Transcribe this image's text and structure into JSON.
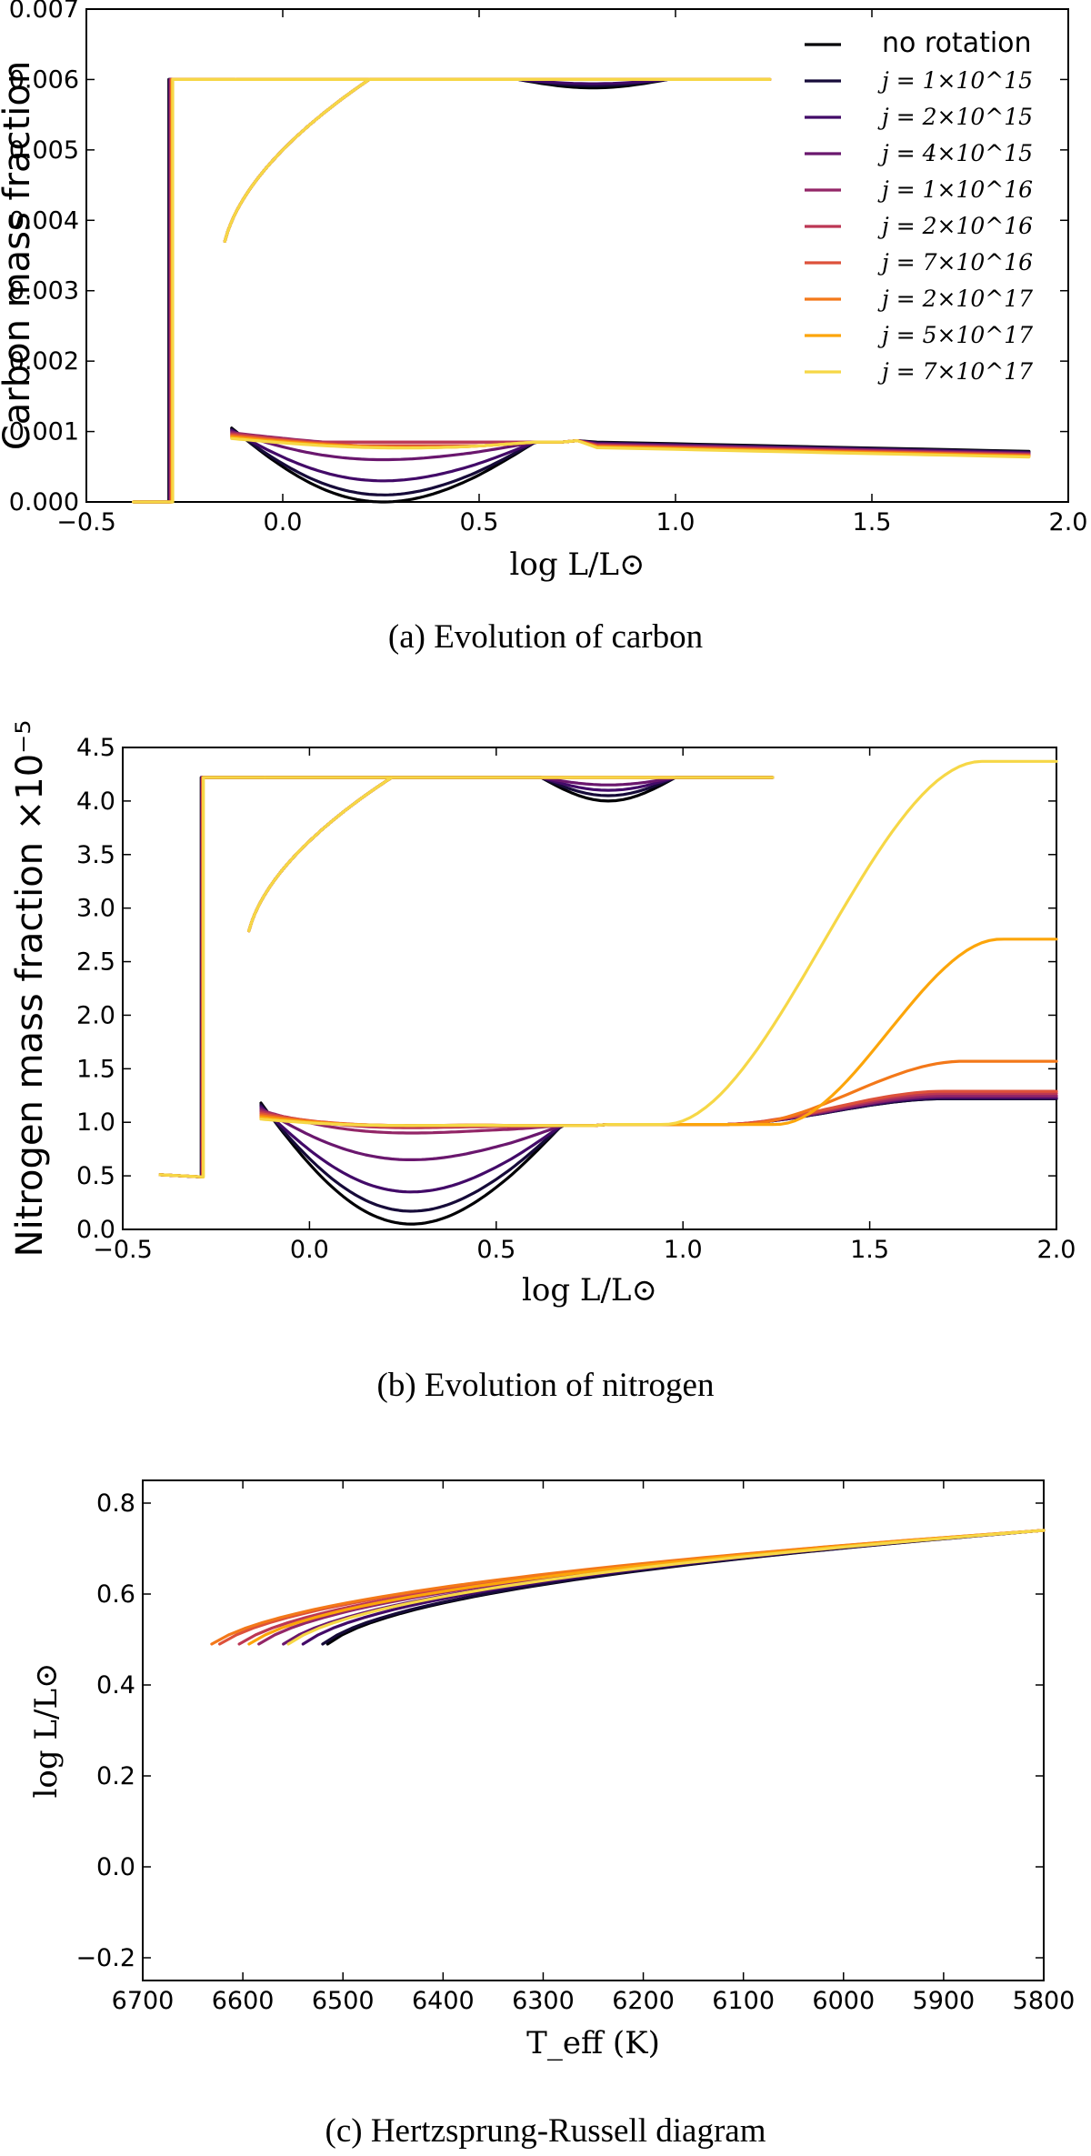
{
  "chart_data": [
    {
      "type": "line",
      "title": "",
      "caption": "(a) Evolution of carbon",
      "xlabel": "log L/L⊙",
      "ylabel": "Carbon mass fraction",
      "xlim": [
        -0.5,
        2.0
      ],
      "ylim": [
        0.0,
        0.007
      ],
      "xticks": [
        "−0.5",
        "0.0",
        "0.5",
        "1.0",
        "1.5",
        "2.0"
      ],
      "yticks": [
        "0.000",
        "0.001",
        "0.002",
        "0.003",
        "0.004",
        "0.005",
        "0.006",
        "0.007"
      ],
      "legend_position": "top-right",
      "series": [
        {
          "name": "no rotation",
          "color": "#000004",
          "min_value": 0.0
        },
        {
          "name": "j = 1×10^15",
          "color": "#160b39",
          "min_value": 0.0001
        },
        {
          "name": "j = 2×10^15",
          "color": "#420a68",
          "min_value": 0.0003
        },
        {
          "name": "j = 4×10^15",
          "color": "#6a176e",
          "min_value": 0.0006
        },
        {
          "name": "j = 1×10^16",
          "color": "#932667",
          "min_value": 0.00085
        },
        {
          "name": "j = 2×10^16",
          "color": "#bc3754",
          "min_value": 0.00085
        },
        {
          "name": "j = 7×10^16",
          "color": "#dd513a",
          "min_value": 0.0008
        },
        {
          "name": "j = 2×10^17",
          "color": "#f37819",
          "min_value": 0.00075
        },
        {
          "name": "j = 5×10^17",
          "color": "#fca50a",
          "min_value": 0.0007
        },
        {
          "name": "j = 7×10^17",
          "color": "#f6d746",
          "min_value": 0.00065
        }
      ]
    },
    {
      "type": "line",
      "title": "",
      "caption": "(b) Evolution of nitrogen",
      "xlabel": "log L/L⊙",
      "ylabel": "Nitrogen mass fraction ×10⁻⁵",
      "xlim": [
        -0.5,
        2.0
      ],
      "ylim": [
        0.0,
        4.5
      ],
      "xticks": [
        "−0.5",
        "0.0",
        "0.5",
        "1.0",
        "1.5",
        "2.0"
      ],
      "yticks": [
        "0.0",
        "0.5",
        "1.0",
        "1.5",
        "2.0",
        "2.5",
        "3.0",
        "3.5",
        "4.0",
        "4.5"
      ],
      "series": [
        {
          "name": "no rotation",
          "color": "#000004",
          "min_value": 0.05,
          "final_value": 1.22
        },
        {
          "name": "j = 1×10^15",
          "color": "#160b39",
          "min_value": 0.17,
          "final_value": 1.22
        },
        {
          "name": "j = 2×10^15",
          "color": "#420a68",
          "min_value": 0.35,
          "final_value": 1.23
        },
        {
          "name": "j = 4×10^15",
          "color": "#6a176e",
          "min_value": 0.65,
          "final_value": 1.24
        },
        {
          "name": "j = 1×10^16",
          "color": "#932667",
          "min_value": 0.9,
          "final_value": 1.25
        },
        {
          "name": "j = 2×10^16",
          "color": "#bc3754",
          "min_value": 0.95,
          "final_value": 1.27
        },
        {
          "name": "j = 7×10^16",
          "color": "#dd513a",
          "min_value": 0.97,
          "final_value": 1.29
        },
        {
          "name": "j = 2×10^17",
          "color": "#f37819",
          "min_value": 0.97,
          "final_value": 1.57
        },
        {
          "name": "j = 5×10^17",
          "color": "#fca50a",
          "min_value": 0.97,
          "final_value": 2.71
        },
        {
          "name": "j = 7×10^17",
          "color": "#f6d746",
          "min_value": 0.97,
          "final_value": 4.37
        }
      ]
    },
    {
      "type": "line",
      "title": "",
      "caption": "(c) Hertzsprung-Russell diagram",
      "xlabel": "T_eff (K)",
      "ylabel": "log L/L⊙",
      "xlim": [
        6700,
        5800
      ],
      "ylim": [
        -0.25,
        0.85
      ],
      "xticks": [
        "6700",
        "6600",
        "6500",
        "6400",
        "6300",
        "6200",
        "6100",
        "6000",
        "5900",
        "5800"
      ],
      "yticks": [
        "−0.2",
        "0.0",
        "0.2",
        "0.4",
        "0.6",
        "0.8"
      ],
      "series": [
        {
          "name": "no rotation",
          "color": "#000004",
          "tip_teff": 6530
        },
        {
          "name": "j = 1×10^15",
          "color": "#160b39",
          "tip_teff": 6535
        },
        {
          "name": "j = 2×10^15",
          "color": "#420a68",
          "tip_teff": 6555
        },
        {
          "name": "j = 4×10^15",
          "color": "#6a176e",
          "tip_teff": 6575
        },
        {
          "name": "j = 1×10^16",
          "color": "#932667",
          "tip_teff": 6600
        },
        {
          "name": "j = 2×10^16",
          "color": "#bc3754",
          "tip_teff": 6620
        },
        {
          "name": "j = 7×10^16",
          "color": "#dd513a",
          "tip_teff": 6640
        },
        {
          "name": "j = 2×10^17",
          "color": "#f37819",
          "tip_teff": 6648
        },
        {
          "name": "j = 5×10^17",
          "color": "#fca50a",
          "tip_teff": 6610
        },
        {
          "name": "j = 7×10^17",
          "color": "#f6d746",
          "tip_teff": 6570
        }
      ]
    }
  ]
}
